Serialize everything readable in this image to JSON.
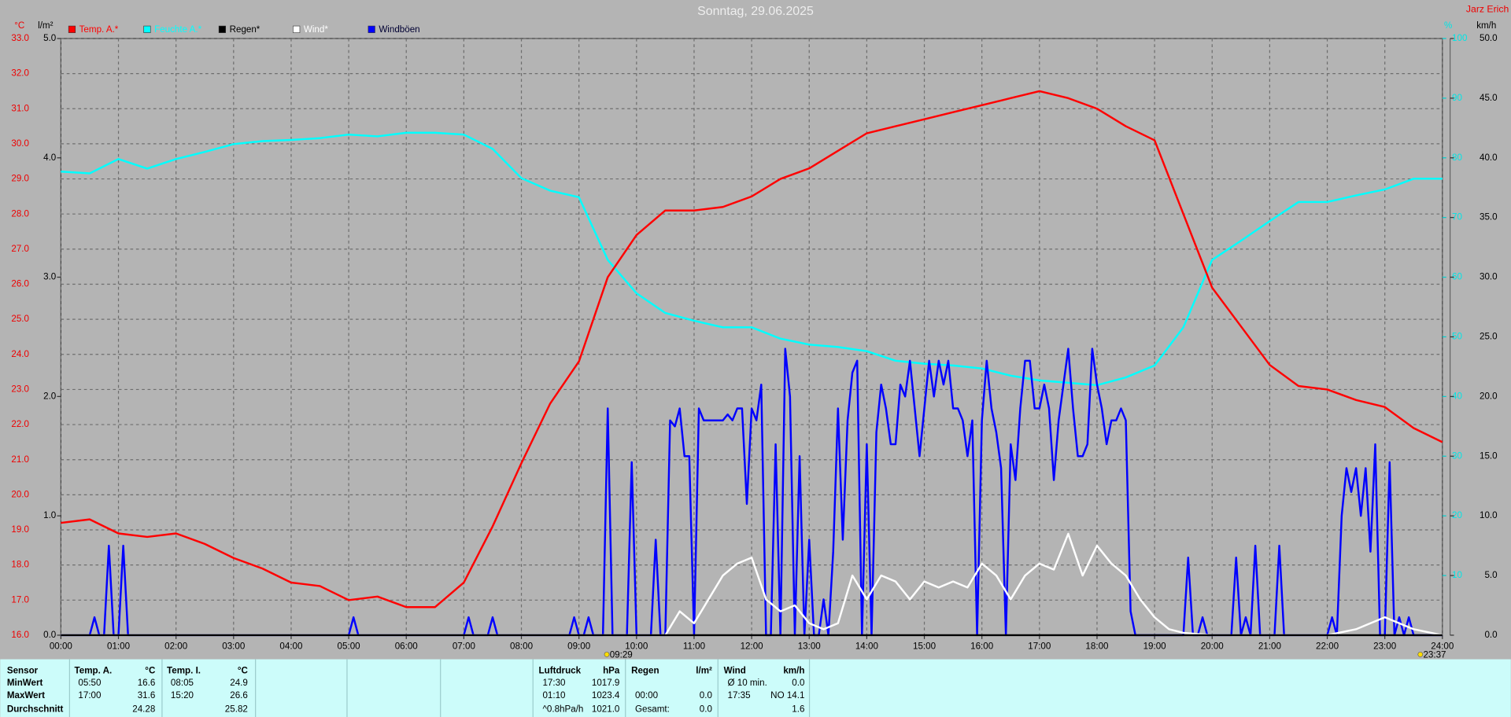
{
  "header": {
    "title": "Sonntag, 29.06.2025",
    "author": "Jarz Erich"
  },
  "chart_data": {
    "type": "line",
    "xlim": [
      0,
      1440
    ],
    "xticks": [
      {
        "value": 0,
        "label": "00:00"
      },
      {
        "value": 60,
        "label": "01:00"
      },
      {
        "value": 120,
        "label": "02:00"
      },
      {
        "value": 180,
        "label": "03:00"
      },
      {
        "value": 240,
        "label": "04:00"
      },
      {
        "value": 300,
        "label": "05:00"
      },
      {
        "value": 360,
        "label": "06:00"
      },
      {
        "value": 420,
        "label": "07:00"
      },
      {
        "value": 480,
        "label": "08:00"
      },
      {
        "value": 540,
        "label": "09:00"
      },
      {
        "value": 600,
        "label": "10:00"
      },
      {
        "value": 660,
        "label": "11:00"
      },
      {
        "value": 720,
        "label": "12:00"
      },
      {
        "value": 780,
        "label": "13:00"
      },
      {
        "value": 840,
        "label": "14:00"
      },
      {
        "value": 900,
        "label": "15:00"
      },
      {
        "value": 960,
        "label": "16:00"
      },
      {
        "value": 1020,
        "label": "17:00"
      },
      {
        "value": 1080,
        "label": "18:00"
      },
      {
        "value": 1140,
        "label": "19:00"
      },
      {
        "value": 1200,
        "label": "20:00"
      },
      {
        "value": 1260,
        "label": "21:00"
      },
      {
        "value": 1320,
        "label": "22:00"
      },
      {
        "value": 1380,
        "label": "23:00"
      },
      {
        "value": 1440,
        "label": "24:00"
      }
    ],
    "y_label": "°C",
    "ylim": [
      16,
      33
    ],
    "yticks": [
      {
        "value": 16,
        "label": "16.0"
      },
      {
        "value": 17,
        "label": "17.0"
      },
      {
        "value": 18,
        "label": "18.0"
      },
      {
        "value": 19,
        "label": "19.0"
      },
      {
        "value": 20,
        "label": "20.0"
      },
      {
        "value": 21,
        "label": "21.0"
      },
      {
        "value": 22,
        "label": "22.0"
      },
      {
        "value": 23,
        "label": "23.0"
      },
      {
        "value": 24,
        "label": "24.0"
      },
      {
        "value": 25,
        "label": "25.0"
      },
      {
        "value": 26,
        "label": "26.0"
      },
      {
        "value": 27,
        "label": "27.0"
      },
      {
        "value": 28,
        "label": "28.0"
      },
      {
        "value": 29,
        "label": "29.0"
      },
      {
        "value": 30,
        "label": "30.0"
      },
      {
        "value": 31,
        "label": "31.0"
      },
      {
        "value": 32,
        "label": "32.0"
      },
      {
        "value": 33,
        "label": "33.0"
      }
    ],
    "rain_axis": {
      "label": "l/m²",
      "lim": [
        0,
        5
      ],
      "ticks": [
        {
          "value": 0,
          "label": "0.0"
        },
        {
          "value": 1,
          "label": "1.0"
        },
        {
          "value": 2,
          "label": "2.0"
        },
        {
          "value": 3,
          "label": "3.0"
        },
        {
          "value": 4,
          "label": "4.0"
        },
        {
          "value": 5,
          "label": "5.0"
        }
      ]
    },
    "humidity_axis": {
      "label": "%",
      "lim": [
        0,
        100
      ],
      "ticks": [
        10,
        20,
        30,
        40,
        50,
        60,
        70,
        80,
        90,
        100
      ]
    },
    "y2_label": "km/h",
    "y2lim": [
      0,
      50
    ],
    "y2ticks": [
      {
        "value": 0,
        "label": "0.0"
      },
      {
        "value": 5,
        "label": "5.0"
      },
      {
        "value": 10,
        "label": "10.0"
      },
      {
        "value": 15,
        "label": "15.0"
      },
      {
        "value": 20,
        "label": "20.0"
      },
      {
        "value": 25,
        "label": "25.0"
      },
      {
        "value": 30,
        "label": "30.0"
      },
      {
        "value": 35,
        "label": "35.0"
      },
      {
        "value": 40,
        "label": "40.0"
      },
      {
        "value": 45,
        "label": "45.0"
      },
      {
        "value": 50,
        "label": "50.0"
      }
    ],
    "grid": true,
    "series": [
      {
        "name": "Temp. A.*",
        "color": "#ff0000",
        "axis": "y",
        "x": [
          0,
          30,
          60,
          90,
          120,
          150,
          180,
          210,
          240,
          270,
          300,
          330,
          360,
          390,
          420,
          450,
          480,
          510,
          540,
          570,
          600,
          630,
          660,
          690,
          720,
          750,
          780,
          810,
          840,
          870,
          900,
          930,
          960,
          990,
          1020,
          1050,
          1080,
          1110,
          1140,
          1170,
          1200,
          1230,
          1260,
          1290,
          1320,
          1350,
          1380,
          1410,
          1440
        ],
        "values": [
          19.2,
          19.3,
          18.9,
          18.8,
          18.9,
          18.6,
          18.2,
          17.9,
          17.5,
          17.4,
          17.0,
          17.1,
          16.8,
          16.8,
          17.5,
          19.1,
          20.9,
          22.6,
          23.8,
          26.2,
          27.4,
          28.1,
          28.1,
          28.2,
          28.5,
          29.0,
          29.3,
          29.8,
          30.3,
          30.5,
          30.7,
          30.9,
          31.1,
          31.3,
          31.5,
          31.3,
          31.0,
          30.5,
          30.1,
          28.0,
          25.9,
          24.8,
          23.7,
          23.1,
          23.0,
          22.7,
          22.5,
          21.9,
          21.5
        ]
      },
      {
        "name": "Feuchte A.*",
        "color": "#00ffff",
        "axis": "humidity",
        "x": [
          0,
          30,
          60,
          90,
          120,
          150,
          180,
          210,
          240,
          270,
          300,
          330,
          360,
          390,
          420,
          450,
          480,
          510,
          540,
          570,
          600,
          630,
          660,
          690,
          720,
          750,
          780,
          810,
          840,
          870,
          900,
          930,
          960,
          990,
          1020,
          1050,
          1080,
          1110,
          1140,
          1170,
          1200,
          1230,
          1260,
          1290,
          1320,
          1350,
          1380,
          1410,
          1440
        ],
        "values": [
          77.7,
          77.4,
          79.8,
          78.2,
          79.8,
          81.0,
          82.3,
          82.8,
          83.0,
          83.3,
          83.9,
          83.6,
          84.2,
          84.2,
          83.9,
          81.5,
          76.6,
          74.5,
          73.4,
          62.9,
          57.3,
          54.0,
          52.7,
          51.6,
          51.6,
          49.7,
          48.7,
          48.3,
          47.6,
          46.0,
          45.5,
          45.2,
          44.7,
          43.5,
          42.7,
          42.3,
          41.9,
          43.2,
          45.2,
          51.6,
          62.9,
          66.1,
          69.4,
          72.6,
          72.6,
          73.7,
          74.7,
          76.5,
          76.5
        ]
      },
      {
        "name": "Regen*",
        "color": "#000000",
        "axis": "rain",
        "x": [
          0,
          1440
        ],
        "values": [
          0,
          0
        ]
      },
      {
        "name": "Wind*",
        "color": "#ffffff",
        "axis": "y2",
        "x": [
          0,
          630,
          645,
          660,
          675,
          690,
          705,
          720,
          735,
          750,
          765,
          780,
          795,
          810,
          825,
          840,
          855,
          870,
          885,
          900,
          915,
          930,
          945,
          960,
          975,
          990,
          1005,
          1020,
          1035,
          1050,
          1065,
          1080,
          1095,
          1110,
          1125,
          1140,
          1155,
          1170,
          1200,
          1320,
          1350,
          1380,
          1395,
          1410,
          1440
        ],
        "values": [
          0,
          0,
          2,
          1,
          3,
          5,
          6,
          6.5,
          3,
          2,
          2.5,
          1,
          0.5,
          1,
          5,
          3,
          5,
          4.5,
          3,
          4.5,
          4,
          4.5,
          4,
          6,
          5,
          3,
          5,
          6,
          5.5,
          8.5,
          5,
          7.5,
          6,
          5,
          3,
          1.5,
          0.5,
          0.2,
          0,
          0,
          0.5,
          1.5,
          1,
          0.5,
          0
        ]
      },
      {
        "name": "Windböen",
        "color": "#0000ff",
        "axis": "y2",
        "x": [
          0,
          30,
          35,
          40,
          45,
          50,
          55,
          60,
          65,
          70,
          300,
          305,
          310,
          420,
          425,
          430,
          445,
          450,
          455,
          530,
          535,
          540,
          545,
          550,
          555,
          565,
          570,
          575,
          590,
          595,
          600,
          615,
          620,
          625,
          630,
          635,
          640,
          645,
          650,
          655,
          660,
          665,
          670,
          680,
          690,
          695,
          700,
          705,
          710,
          715,
          720,
          725,
          730,
          735,
          740,
          745,
          750,
          755,
          760,
          765,
          770,
          775,
          780,
          785,
          790,
          795,
          800,
          805,
          810,
          815,
          820,
          825,
          830,
          835,
          840,
          845,
          850,
          855,
          860,
          865,
          870,
          875,
          880,
          885,
          890,
          895,
          900,
          905,
          910,
          915,
          920,
          925,
          930,
          935,
          940,
          945,
          950,
          955,
          960,
          965,
          970,
          975,
          980,
          985,
          990,
          995,
          1000,
          1005,
          1010,
          1015,
          1020,
          1025,
          1030,
          1035,
          1040,
          1045,
          1050,
          1055,
          1060,
          1065,
          1070,
          1075,
          1080,
          1085,
          1090,
          1095,
          1100,
          1105,
          1110,
          1115,
          1120,
          1170,
          1175,
          1180,
          1185,
          1190,
          1195,
          1220,
          1225,
          1230,
          1235,
          1240,
          1245,
          1250,
          1265,
          1270,
          1275,
          1320,
          1325,
          1330,
          1335,
          1340,
          1345,
          1350,
          1355,
          1360,
          1365,
          1370,
          1375,
          1380,
          1385,
          1390,
          1395,
          1400,
          1405,
          1410,
          1440
        ],
        "values": [
          0,
          0,
          1.5,
          0,
          0,
          7.5,
          0,
          0,
          7.5,
          0,
          0,
          1.5,
          0,
          0,
          1.5,
          0,
          0,
          1.5,
          0,
          0,
          1.5,
          0,
          0,
          1.5,
          0,
          0,
          19,
          0,
          0,
          14.5,
          0,
          0,
          8,
          0,
          0,
          18,
          17.5,
          19,
          15,
          15,
          0,
          19,
          18,
          18,
          18,
          18.5,
          18,
          19,
          19,
          11,
          19,
          18,
          21,
          0,
          0,
          16,
          0,
          24,
          20,
          0,
          15,
          0,
          8,
          0,
          0,
          3,
          0,
          7,
          19,
          8,
          18,
          22,
          23,
          0,
          16,
          0,
          17,
          21,
          19,
          16,
          16,
          21,
          20,
          23,
          19,
          15,
          19,
          23,
          20,
          23,
          21,
          23,
          19,
          19,
          18,
          15,
          18,
          0,
          18,
          23,
          19,
          17,
          14,
          0,
          16,
          13,
          19,
          23,
          23,
          19,
          19,
          21,
          19,
          13,
          18,
          21,
          24,
          19,
          15,
          15,
          16,
          24,
          21,
          19,
          16,
          18,
          18,
          19,
          18,
          2,
          0,
          0,
          6.5,
          0,
          0,
          1.5,
          0,
          0,
          6.5,
          0,
          1.5,
          0,
          7.5,
          0,
          0,
          7.5,
          0,
          0,
          1.5,
          0,
          10,
          14,
          12,
          14,
          10,
          14,
          7,
          16,
          0,
          0,
          14.5,
          0,
          1.5,
          0,
          1.5,
          0,
          0
        ]
      }
    ],
    "annotations": [
      {
        "label": "09:29",
        "x": 569
      },
      {
        "label": "23:37",
        "x": 1417
      }
    ]
  },
  "stats": {
    "row_labels": [
      "Sensor",
      "MinWert",
      "MaxWert",
      "Durchschnitt"
    ],
    "groups": [
      {
        "name": "Temp. A.",
        "unit": "°C",
        "cells": [
          [
            "05:50",
            "16.6"
          ],
          [
            "17:00",
            "31.6"
          ],
          [
            null,
            "24.28"
          ]
        ]
      },
      {
        "name": "Temp. I.",
        "unit": "°C",
        "cells": [
          [
            "08:05",
            "24.9"
          ],
          [
            "15:20",
            "26.6"
          ],
          [
            null,
            "25.82"
          ]
        ]
      },
      {
        "name": "Luftdruck",
        "unit": "hPa",
        "cells": [
          [
            "17:30",
            "1017.9"
          ],
          [
            "01:10",
            "1023.4"
          ],
          [
            "^0.8hPa/h",
            "1021.0"
          ]
        ]
      },
      {
        "name": "Regen",
        "unit": "l/m²",
        "cells": [
          [
            null,
            null
          ],
          [
            "00:00",
            "0.0"
          ],
          [
            "Gesamt:",
            "0.0"
          ]
        ]
      },
      {
        "name": "Wind",
        "unit": "km/h",
        "cells": [
          [
            "Ø 10 min.",
            "0.0"
          ],
          [
            "17:35",
            "NO 14.1"
          ],
          [
            null,
            "1.6"
          ]
        ]
      }
    ]
  }
}
